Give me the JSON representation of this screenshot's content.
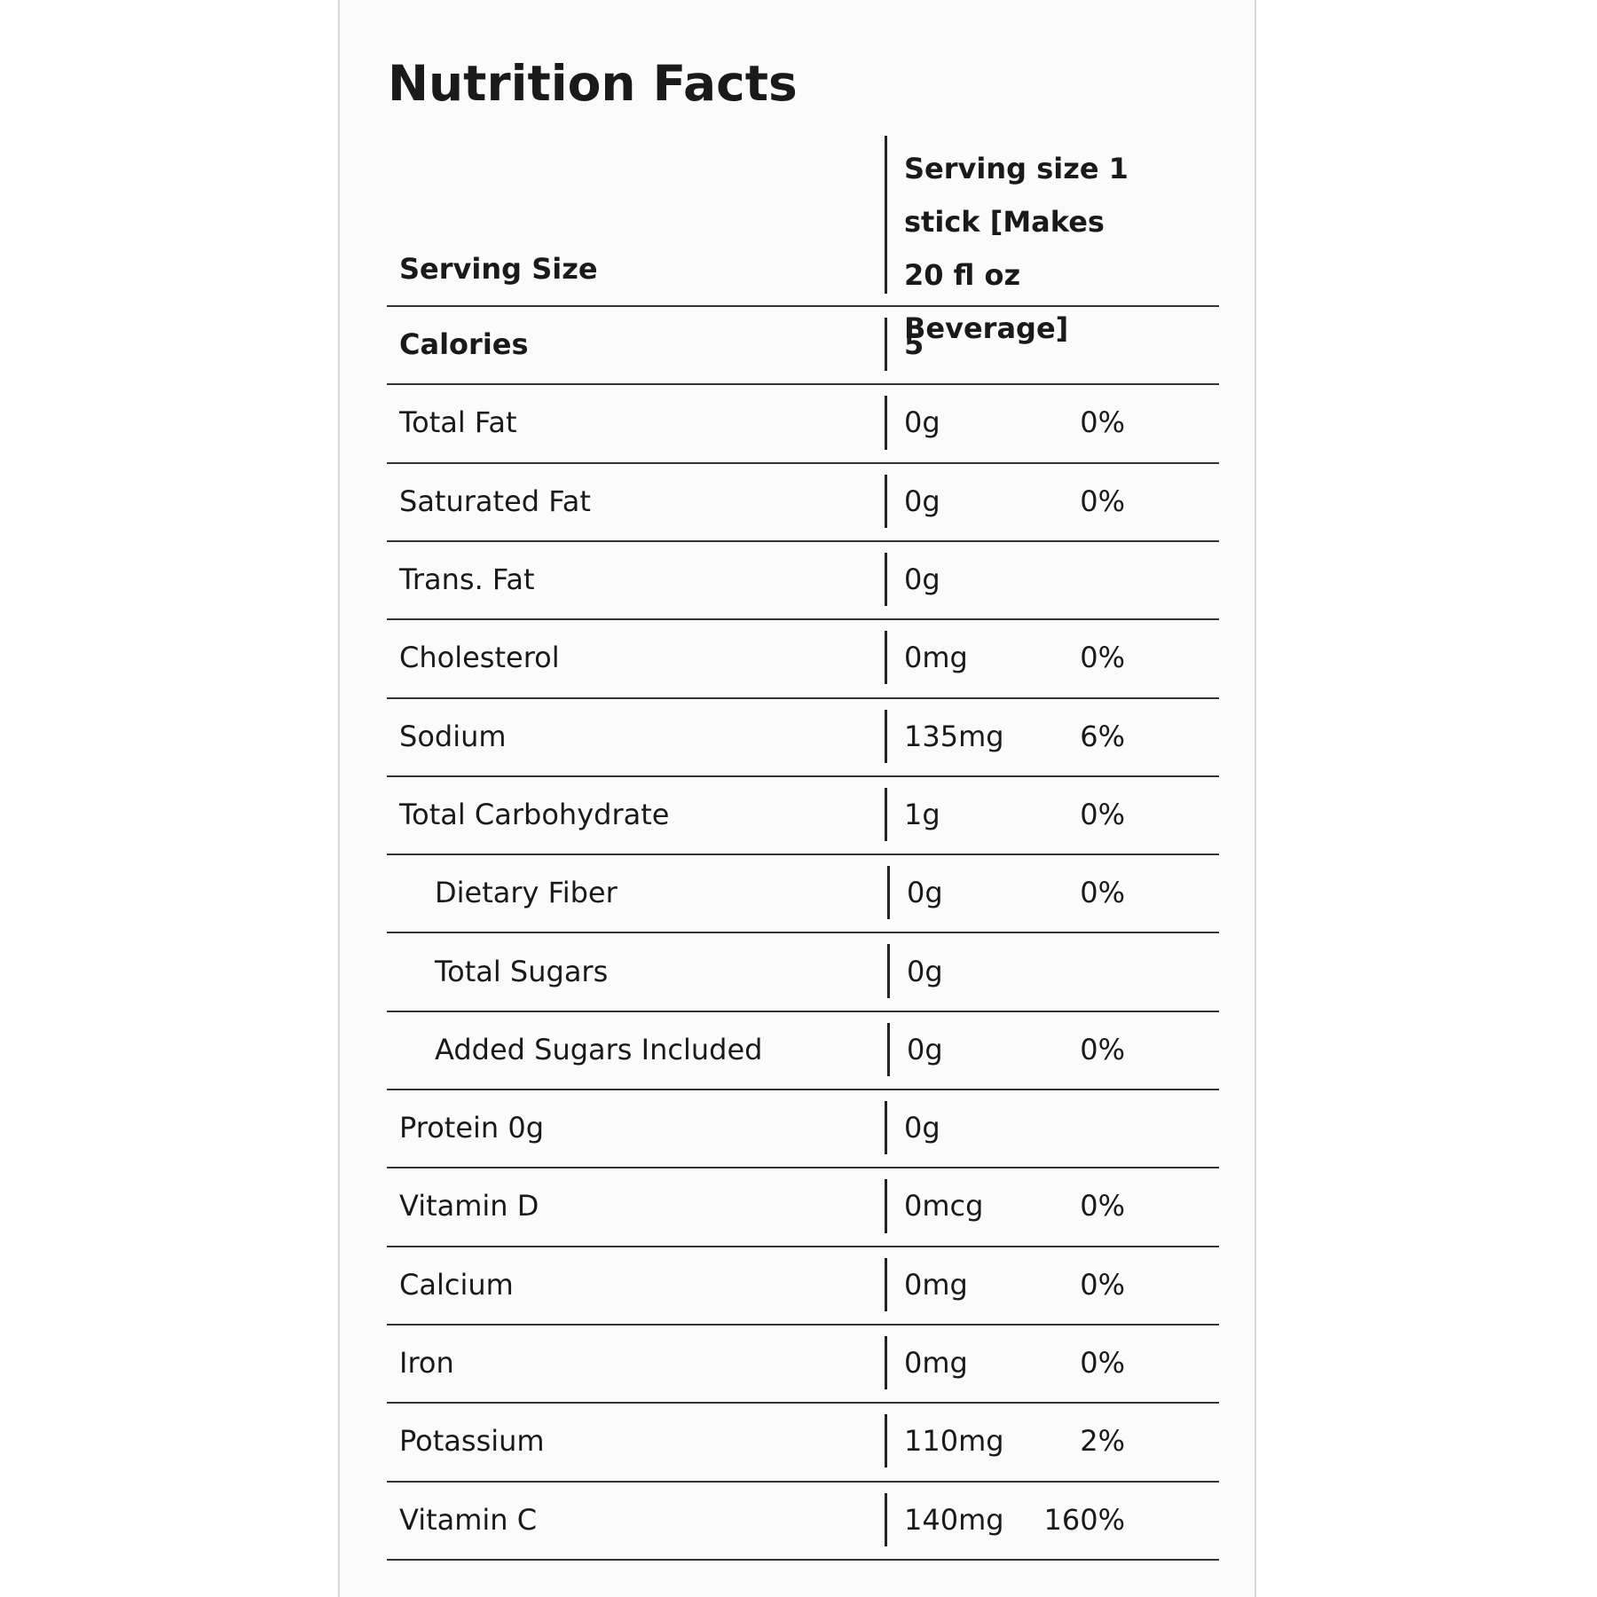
{
  "title": "Nutrition Facts",
  "serving": {
    "label": "Serving Size",
    "value": "Serving size 1 stick [Makes 20 fl oz Beverage]"
  },
  "rows": [
    {
      "label": "Calories",
      "amount": "5",
      "bold": true
    },
    {
      "label": "Total Fat",
      "amount": "0g",
      "dv": "0%"
    },
    {
      "label": "Saturated Fat",
      "amount": "0g",
      "dv": "0%"
    },
    {
      "label": "Trans. Fat",
      "amount": "0g"
    },
    {
      "label": "Cholesterol",
      "amount": "0mg",
      "dv": "0%"
    },
    {
      "label": "Sodium",
      "amount": "135mg",
      "dv": "6%"
    },
    {
      "label": "Total Carbohydrate",
      "amount": "1g",
      "dv": "0%"
    },
    {
      "label": "Dietary Fiber",
      "amount": "0g",
      "dv": "0%",
      "indent": true
    },
    {
      "label": "Total Sugars",
      "amount": "0g",
      "indent": true
    },
    {
      "label": "Added Sugars Included",
      "amount": "0g",
      "dv": "0%",
      "indent": true
    },
    {
      "label": "Protein 0g",
      "amount": "0g"
    },
    {
      "label": "Vitamin D",
      "amount": "0mcg",
      "dv": "0%"
    },
    {
      "label": "Calcium",
      "amount": "0mg",
      "dv": "0%"
    },
    {
      "label": "Iron",
      "amount": "0mg",
      "dv": "0%"
    },
    {
      "label": "Potassium",
      "amount": "110mg",
      "dv": "2%"
    },
    {
      "label": "Vitamin C",
      "amount": "140mg",
      "dv": "160%"
    }
  ]
}
